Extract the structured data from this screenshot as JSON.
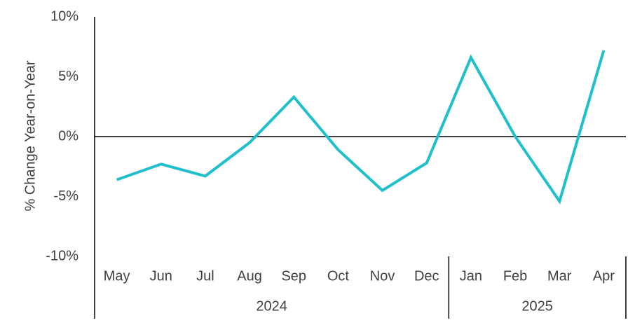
{
  "chart_data": {
    "type": "line",
    "y_label": "% Change Year-on-Year",
    "groups": [
      {
        "name": "2024",
        "categories": [
          "May",
          "Jun",
          "Jul",
          "Aug",
          "Sep",
          "Oct",
          "Nov",
          "Dec"
        ]
      },
      {
        "name": "2025",
        "categories": [
          "Jan",
          "Feb",
          "Mar",
          "Apr"
        ]
      }
    ],
    "values": [
      -3.6,
      -2.3,
      -3.3,
      -0.5,
      3.3,
      -1.1,
      -4.5,
      -2.2,
      6.6,
      0.0,
      -5.4,
      7.2
    ],
    "color": "#1fbfcc",
    "ylim": [
      -10,
      10
    ],
    "yticks": [
      {
        "value": -10,
        "label": "-10%"
      },
      {
        "value": -5,
        "label": "-5%"
      },
      {
        "value": 0,
        "label": "0%"
      },
      {
        "value": 5,
        "label": "5%"
      },
      {
        "value": 10,
        "label": "10%"
      }
    ]
  }
}
